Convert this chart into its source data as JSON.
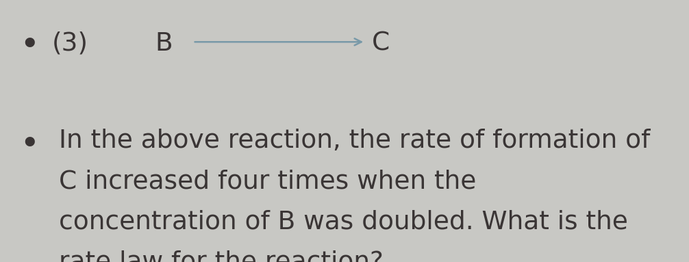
{
  "background_color": "#c8c8c4",
  "text_color": "#3a3535",
  "arrow_color": "#7899a8",
  "line1_bullet": "•",
  "line1_number": "(3)",
  "reaction_B": "B",
  "reaction_C": "C",
  "bullet2": "•",
  "para_line1": "In the above reaction, the rate of formation of",
  "para_line2": "C increased four times when the",
  "para_line3": "concentration of B was doubled. What is the",
  "para_line4": "rate law for the reaction?",
  "fontsize_main": 27,
  "fontsize_reaction": 27,
  "figwidth": 10.06,
  "figheight": 3.83,
  "dpi": 100
}
